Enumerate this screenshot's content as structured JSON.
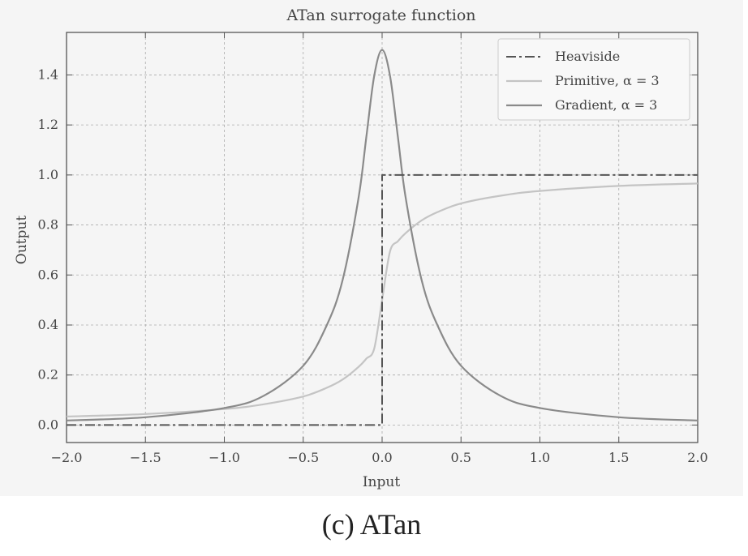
{
  "chart_data": {
    "type": "line",
    "title": "ATan surrogate function",
    "xlabel": "Input",
    "ylabel": "Output",
    "xlim": [
      -2.0,
      2.0
    ],
    "ylim": [
      -0.07,
      1.57
    ],
    "xticks": [
      -2.0,
      -1.5,
      -1.0,
      -0.5,
      0.0,
      0.5,
      1.0,
      1.5,
      2.0
    ],
    "xtick_labels": [
      "−2.0",
      "−1.5",
      "−1.0",
      "−0.5",
      "0.0",
      "0.5",
      "1.0",
      "1.5",
      "2.0"
    ],
    "yticks": [
      0.0,
      0.2,
      0.4,
      0.6,
      0.8,
      1.0,
      1.2,
      1.4
    ],
    "ytick_labels": [
      "0.0",
      "0.2",
      "0.4",
      "0.6",
      "0.8",
      "1.0",
      "1.2",
      "1.4"
    ],
    "grid": true,
    "legend_position": "top-right",
    "series": [
      {
        "name": "Heaviside",
        "style": "dash-dot",
        "color": "#555555",
        "x": [
          -2.0,
          0.0,
          0.0,
          2.0
        ],
        "y": [
          0.0,
          0.0,
          1.0,
          1.0
        ]
      },
      {
        "name": "Primitive, α = 3",
        "style": "solid",
        "color": "#c4c4c4",
        "x": [
          -2.0,
          -1.5,
          -1.0,
          -0.75,
          -0.5,
          -0.35,
          -0.25,
          -0.15,
          -0.1,
          -0.05,
          0.0,
          0.05,
          0.1,
          0.15,
          0.25,
          0.35,
          0.5,
          0.75,
          1.0,
          1.5,
          2.0
        ],
        "y": [
          0.034,
          0.044,
          0.064,
          0.083,
          0.114,
          0.149,
          0.182,
          0.232,
          0.265,
          0.306,
          0.5,
          0.694,
          0.735,
          0.768,
          0.818,
          0.851,
          0.886,
          0.917,
          0.936,
          0.956,
          0.966
        ]
      },
      {
        "name": "Gradient, α = 3",
        "style": "solid",
        "color": "#8a8a8a",
        "x": [
          -2.0,
          -1.5,
          -1.0,
          -0.75,
          -0.5,
          -0.35,
          -0.25,
          -0.15,
          -0.1,
          -0.05,
          0.0,
          0.05,
          0.1,
          0.15,
          0.25,
          0.35,
          0.5,
          0.75,
          1.0,
          1.5,
          2.0
        ],
        "y": [
          0.018,
          0.031,
          0.068,
          0.117,
          0.237,
          0.4,
          0.581,
          0.906,
          1.151,
          1.397,
          1.5,
          1.397,
          1.151,
          0.906,
          0.581,
          0.4,
          0.237,
          0.117,
          0.068,
          0.031,
          0.018
        ]
      }
    ]
  },
  "caption": "(c) ATan"
}
